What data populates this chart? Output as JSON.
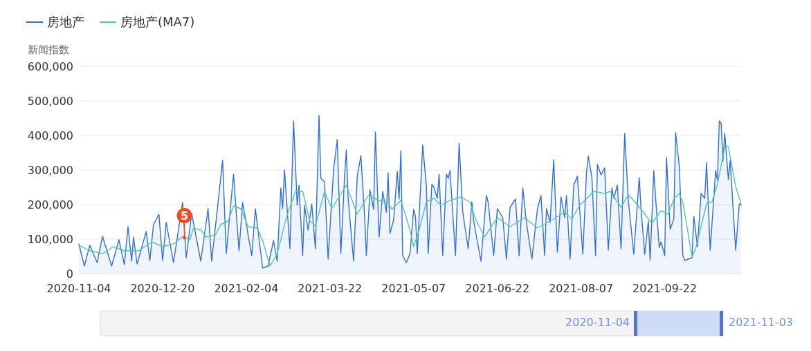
{
  "chart_data": {
    "type": "line",
    "ylabel": "新闻指数",
    "xlim": [
      "2020-11-04",
      "2021-11-03"
    ],
    "xticks": [
      "2020-11-04",
      "2020-12-20",
      "2021-02-04",
      "2021-03-22",
      "2021-05-07",
      "2021-06-22",
      "2021-08-07",
      "2021-09-22"
    ],
    "ylim": [
      0,
      600000
    ],
    "yticks": [
      0,
      {
        "value": 100000,
        "label": "100,000"
      },
      {
        "value": 200000,
        "label": "200,000"
      },
      {
        "value": 300000,
        "label": "300,000"
      },
      {
        "value": 400000,
        "label": "400,000"
      },
      {
        "value": 500000,
        "label": "500,000"
      },
      {
        "value": 600000,
        "label": "600,000"
      }
    ],
    "grid": "y",
    "legend": "top left",
    "series": [
      {
        "name": "房地产",
        "type": "area",
        "color": "#2f6fdc",
        "x": [
          "2020-11-04",
          "2020-11-07",
          "2020-11-10",
          "2020-11-14",
          "2020-11-17",
          "2020-11-22",
          "2020-11-26",
          "2020-11-29",
          "2020-12-01",
          "2020-12-03",
          "2020-12-04",
          "2020-12-06",
          "2020-12-11",
          "2020-12-13",
          "2020-12-15",
          "2020-12-18",
          "2020-12-20",
          "2020-12-22",
          "2020-12-26",
          "2020-12-31",
          "2021-01-02",
          "2021-01-05",
          "2021-01-10",
          "2021-01-14",
          "2021-01-16",
          "2021-01-19",
          "2021-01-22",
          "2021-01-24",
          "2021-01-28",
          "2021-01-31",
          "2021-02-02",
          "2021-02-07",
          "2021-02-09",
          "2021-02-13",
          "2021-02-16",
          "2021-02-19",
          "2021-02-21",
          "2021-02-23",
          "2021-02-24",
          "2021-02-25",
          "2021-02-28",
          "2021-03-02",
          "2021-03-04",
          "2021-03-05",
          "2021-03-07",
          "2021-03-08",
          "2021-03-10",
          "2021-03-12",
          "2021-03-14",
          "2021-03-16",
          "2021-03-17",
          "2021-03-19",
          "2021-03-21",
          "2021-03-24",
          "2021-03-26",
          "2021-03-28",
          "2021-03-30",
          "2021-03-31",
          "2021-04-01",
          "2021-04-04",
          "2021-04-06",
          "2021-04-08",
          "2021-04-10",
          "2021-04-11",
          "2021-04-13",
          "2021-04-15",
          "2021-04-16",
          "2021-04-18",
          "2021-04-20",
          "2021-04-22",
          "2021-04-23",
          "2021-04-24",
          "2021-04-26",
          "2021-04-28",
          "2021-04-29",
          "2021-04-30",
          "2021-05-01",
          "2021-05-03",
          "2021-05-05",
          "2021-05-07",
          "2021-05-08",
          "2021-05-09",
          "2021-05-12",
          "2021-05-14",
          "2021-05-15",
          "2021-05-17",
          "2021-05-18",
          "2021-05-20",
          "2021-05-21",
          "2021-05-23",
          "2021-05-25",
          "2021-05-26",
          "2021-05-27",
          "2021-05-30",
          "2021-06-01",
          "2021-06-03",
          "2021-06-06",
          "2021-06-08",
          "2021-06-09",
          "2021-06-13",
          "2021-06-16",
          "2021-06-17",
          "2021-06-20",
          "2021-06-22",
          "2021-06-25",
          "2021-06-27",
          "2021-06-29",
          "2021-07-02",
          "2021-07-04",
          "2021-07-06",
          "2021-07-08",
          "2021-07-11",
          "2021-07-14",
          "2021-07-16",
          "2021-07-18",
          "2021-07-19",
          "2021-07-21",
          "2021-07-23",
          "2021-07-25",
          "2021-07-27",
          "2021-07-29",
          "2021-07-30",
          "2021-08-01",
          "2021-08-03",
          "2021-08-05",
          "2021-08-08",
          "2021-08-10",
          "2021-08-11",
          "2021-08-13",
          "2021-08-15",
          "2021-08-16",
          "2021-08-18",
          "2021-08-20",
          "2021-08-22",
          "2021-08-24",
          "2021-08-25",
          "2021-08-27",
          "2021-08-29",
          "2021-08-31",
          "2021-09-02",
          "2021-09-05",
          "2021-09-08",
          "2021-09-09",
          "2021-09-11",
          "2021-09-13",
          "2021-09-14",
          "2021-09-16",
          "2021-09-17",
          "2021-09-19",
          "2021-09-20",
          "2021-09-22",
          "2021-09-23",
          "2021-09-25",
          "2021-09-27",
          "2021-09-28",
          "2021-09-30",
          "2021-10-02",
          "2021-10-03",
          "2021-10-07",
          "2021-10-08",
          "2021-10-10",
          "2021-10-12",
          "2021-10-14",
          "2021-10-15",
          "2021-10-17",
          "2021-10-20",
          "2021-10-21",
          "2021-10-22",
          "2021-10-23",
          "2021-10-24",
          "2021-10-25",
          "2021-10-27",
          "2021-10-28",
          "2021-10-31",
          "2021-11-02",
          "2021-11-03"
        ],
        "values": [
          86000,
          22000,
          82000,
          32000,
          108000,
          22000,
          98000,
          26000,
          136000,
          36000,
          106000,
          28000,
          122000,
          38000,
          142000,
          172000,
          38000,
          148000,
          32000,
          206000,
          46000,
          174000,
          36000,
          188000,
          36000,
          182000,
          328000,
          58000,
          288000,
          66000,
          206000,
          52000,
          188000,
          16000,
          22000,
          96000,
          36000,
          248000,
          188000,
          300000,
          72000,
          442000,
          198000,
          256000,
          52000,
          198000,
          126000,
          202000,
          72000,
          458000,
          276000,
          266000,
          42000,
          302000,
          388000,
          58000,
          278000,
          358000,
          218000,
          36000,
          282000,
          342000,
          172000,
          52000,
          242000,
          186000,
          410000,
          106000,
          238000,
          178000,
          292000,
          116000,
          156000,
          296000,
          216000,
          356000,
          52000,
          32000,
          58000,
          186000,
          166000,
          58000,
          372000,
          254000,
          58000,
          258000,
          252000,
          218000,
          288000,
          52000,
          288000,
          276000,
          298000,
          52000,
          378000,
          178000,
          72000,
          208000,
          152000,
          36000,
          226000,
          206000,
          52000,
          188000,
          162000,
          42000,
          192000,
          216000,
          52000,
          248000,
          148000,
          42000,
          186000,
          226000,
          52000,
          188000,
          148000,
          330000,
          62000,
          222000,
          162000,
          226000,
          42000,
          256000,
          282000,
          56000,
          292000,
          340000,
          278000,
          52000,
          316000,
          286000,
          306000,
          68000,
          248000,
          218000,
          256000,
          72000,
          406000,
          212000,
          56000,
          278000,
          188000,
          56000,
          152000,
          38000,
          298000,
          218000,
          76000,
          92000,
          52000,
          336000,
          128000,
          158000,
          408000,
          312000,
          52000,
          38000,
          46000,
          166000,
          78000,
          232000,
          218000,
          322000,
          68000,
          298000,
          270000,
          442000,
          436000,
          326000,
          406000,
          272000,
          328000,
          68000,
          202000,
          198000
        ]
      },
      {
        "name": "房地产(MA7)",
        "type": "line",
        "color": "#4cc9b0",
        "x": [
          "2020-11-04",
          "2020-11-10",
          "2020-11-17",
          "2020-11-23",
          "2020-11-29",
          "2020-12-07",
          "2020-12-14",
          "2020-12-20",
          "2020-12-26",
          "2020-12-31",
          "2021-01-04",
          "2021-01-06",
          "2021-01-10",
          "2021-01-13",
          "2021-01-18",
          "2021-01-21",
          "2021-01-25",
          "2021-01-28",
          "2021-02-01",
          "2021-02-05",
          "2021-02-10",
          "2021-02-13",
          "2021-02-17",
          "2021-02-21",
          "2021-02-26",
          "2021-03-03",
          "2021-03-07",
          "2021-03-11",
          "2021-03-14",
          "2021-03-19",
          "2021-03-23",
          "2021-03-31",
          "2021-04-06",
          "2021-04-12",
          "2021-04-18",
          "2021-04-23",
          "2021-04-25",
          "2021-04-30",
          "2021-05-05",
          "2021-05-07",
          "2021-05-10",
          "2021-05-14",
          "2021-05-18",
          "2021-05-22",
          "2021-05-27",
          "2021-06-02",
          "2021-06-07",
          "2021-06-10",
          "2021-06-15",
          "2021-06-22",
          "2021-06-29",
          "2021-07-07",
          "2021-07-14",
          "2021-07-23",
          "2021-07-29",
          "2021-08-02",
          "2021-08-06",
          "2021-08-14",
          "2021-08-20",
          "2021-08-23",
          "2021-08-29",
          "2021-09-02",
          "2021-09-06",
          "2021-09-11",
          "2021-09-15",
          "2021-09-20",
          "2021-09-24",
          "2021-09-27",
          "2021-09-30",
          "2021-10-02",
          "2021-10-07",
          "2021-10-09",
          "2021-10-15",
          "2021-10-18",
          "2021-10-21",
          "2021-10-25",
          "2021-10-27",
          "2021-10-31",
          "2021-11-03"
        ],
        "values": [
          82000,
          66000,
          58000,
          78000,
          66000,
          66000,
          92000,
          78000,
          86000,
          108000,
          98000,
          132000,
          126000,
          106000,
          112000,
          142000,
          152000,
          196000,
          188000,
          136000,
          132000,
          96000,
          22000,
          56000,
          162000,
          238000,
          238000,
          152000,
          138000,
          238000,
          188000,
          256000,
          172000,
          226000,
          212000,
          206000,
          186000,
          212000,
          126000,
          78000,
          126000,
          208000,
          218000,
          198000,
          212000,
          222000,
          206000,
          158000,
          106000,
          162000,
          136000,
          162000,
          132000,
          158000,
          178000,
          158000,
          196000,
          238000,
          232000,
          238000,
          192000,
          228000,
          206000,
          172000,
          146000,
          182000,
          172000,
          216000,
          232000,
          206000,
          48000,
          72000,
          202000,
          208000,
          258000,
          368000,
          368000,
          252000,
          202000
        ]
      }
    ],
    "annotations": [
      {
        "text": "5",
        "x": "2021-01-01",
        "y": 104000
      },
      "2020-11-04",
      "2021-11-03"
    ]
  }
}
